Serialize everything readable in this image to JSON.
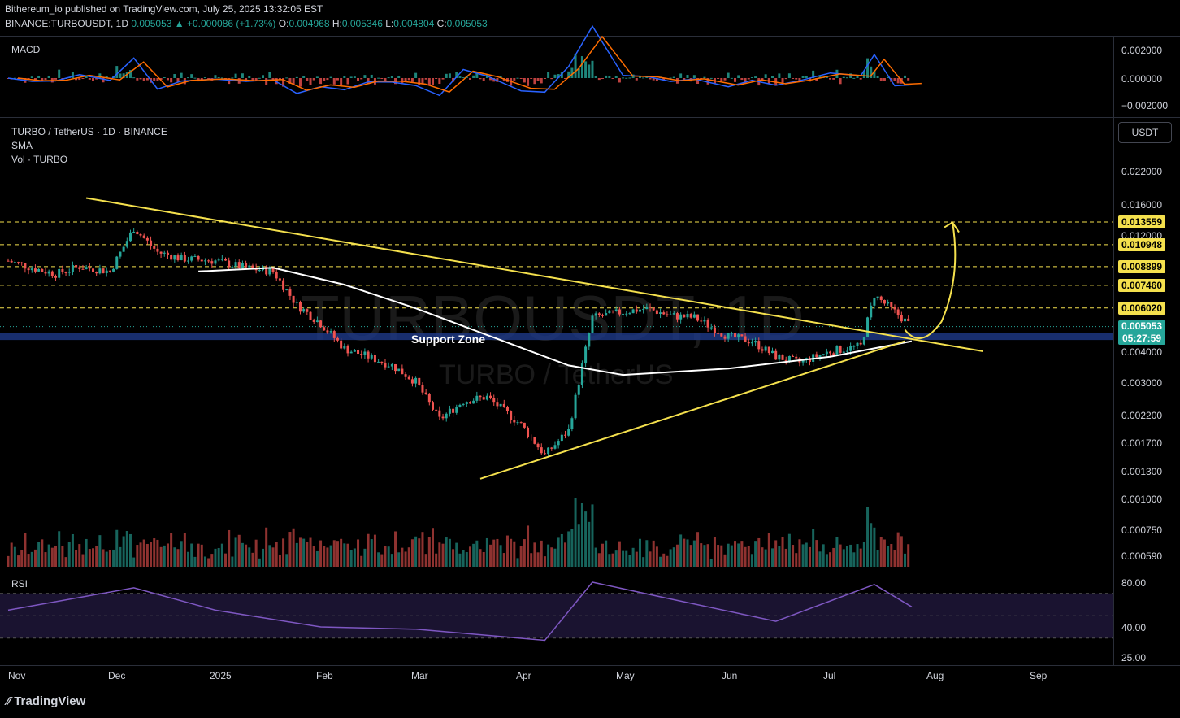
{
  "header": {
    "line1": "Bithereum_io published on TradingView.com, July 25, 2025 13:32:05 EST",
    "symbol": "BINANCE:TURBOUSDT, 1D",
    "last": "0.005053",
    "change": "▲ +0.000086 (+1.73%)",
    "o_label": "O:",
    "o": "0.004968",
    "h_label": "H:",
    "h": "0.005346",
    "l_label": "L:",
    "l": "0.004804",
    "c_label": "C:",
    "c": "0.005053"
  },
  "panes": {
    "macd_label": "MACD",
    "main_title": "TURBO / TetherUS · 1D · BINANCE",
    "sma_label": "SMA",
    "vol_label": "Vol · TURBO",
    "rsi_label": "RSI"
  },
  "watermark": {
    "big": "TURBOUSDT, 1D",
    "small": "TURBO / TetherUS"
  },
  "annotation": {
    "support_zone": "Support Zone"
  },
  "currency_button": "USDT",
  "macd_axis": [
    "0.002000",
    "0.000000",
    "−0.002000"
  ],
  "price_axis": [
    "0.022000",
    "0.016000",
    "0.012000",
    "0.004000",
    "0.003000",
    "0.002200",
    "0.001700",
    "0.001300",
    "0.001000",
    "0.000750",
    "0.000590"
  ],
  "rsi_axis": [
    "80.00",
    "40.00",
    "25.00"
  ],
  "levels": [
    "0.013559",
    "0.010948",
    "0.008899",
    "0.007460",
    "0.006020"
  ],
  "current_price": {
    "price": "0.005053",
    "countdown": "05:27:59"
  },
  "x_axis": [
    "Nov",
    "Dec",
    "2025",
    "Feb",
    "Mar",
    "Apr",
    "May",
    "Jun",
    "Jul",
    "Aug",
    "Sep"
  ],
  "footer": {
    "brand": "TradingView"
  },
  "colors": {
    "up": "#26a69a",
    "down": "#ef5350",
    "trend": "#f4e04d",
    "sma": "#ffffff",
    "zone": "#1e3a8a",
    "rsi": "#7e57c2",
    "macd": "#2962ff",
    "signal": "#ff6d00"
  },
  "chart_data": {
    "type": "candlestick",
    "title": "TURBO / TetherUS · 1D · BINANCE",
    "y_scale": "log",
    "x_range": [
      "2024-11-01",
      "2025-07-25"
    ],
    "close_series": [
      [
        "2024-11-01",
        0.0094
      ],
      [
        "2024-11-08",
        0.0088
      ],
      [
        "2024-11-15",
        0.0083
      ],
      [
        "2024-11-22",
        0.0089
      ],
      [
        "2024-12-01",
        0.0085
      ],
      [
        "2024-12-08",
        0.0128
      ],
      [
        "2024-12-15",
        0.0102
      ],
      [
        "2024-12-22",
        0.0096
      ],
      [
        "2025-01-01",
        0.0094
      ],
      [
        "2025-01-10",
        0.0088
      ],
      [
        "2025-01-18",
        0.0085
      ],
      [
        "2025-01-25",
        0.0062
      ],
      [
        "2025-02-01",
        0.0052
      ],
      [
        "2025-02-08",
        0.0041
      ],
      [
        "2025-02-15",
        0.0038
      ],
      [
        "2025-02-22",
        0.0035
      ],
      [
        "2025-03-01",
        0.003
      ],
      [
        "2025-03-08",
        0.0021
      ],
      [
        "2025-03-15",
        0.0025
      ],
      [
        "2025-03-22",
        0.0026
      ],
      [
        "2025-04-01",
        0.002
      ],
      [
        "2025-04-08",
        0.0015
      ],
      [
        "2025-04-15",
        0.0019
      ],
      [
        "2025-04-22",
        0.0055
      ],
      [
        "2025-05-01",
        0.0058
      ],
      [
        "2025-05-08",
        0.006
      ],
      [
        "2025-05-15",
        0.0056
      ],
      [
        "2025-05-22",
        0.0055
      ],
      [
        "2025-06-01",
        0.0046
      ],
      [
        "2025-06-08",
        0.0044
      ],
      [
        "2025-06-15",
        0.0038
      ],
      [
        "2025-06-22",
        0.0036
      ],
      [
        "2025-07-01",
        0.004
      ],
      [
        "2025-07-10",
        0.0042
      ],
      [
        "2025-07-14",
        0.0068
      ],
      [
        "2025-07-20",
        0.0058
      ],
      [
        "2025-07-25",
        0.005053
      ]
    ],
    "sma_series": [
      [
        "2024-12-27",
        0.0085
      ],
      [
        "2025-01-18",
        0.0088
      ],
      [
        "2025-02-08",
        0.0075
      ],
      [
        "2025-03-01",
        0.006
      ],
      [
        "2025-03-25",
        0.0045
      ],
      [
        "2025-04-15",
        0.0035
      ],
      [
        "2025-05-01",
        0.0032
      ],
      [
        "2025-06-01",
        0.0034
      ],
      [
        "2025-07-01",
        0.0038
      ],
      [
        "2025-07-25",
        0.0044
      ]
    ],
    "support_zone": [
      0.00445,
      0.00475
    ],
    "horizontal_levels": [
      0.013559,
      0.010948,
      0.008899,
      0.00746,
      0.00602
    ],
    "descending_trendline": [
      [
        "2024-11-24",
        0.017
      ],
      [
        "2025-08-15",
        0.004
      ]
    ],
    "ascending_trendline": [
      [
        "2025-03-20",
        0.0012
      ],
      [
        "2025-07-23",
        0.0044
      ]
    ],
    "projection": [
      [
        "2025-07-23",
        0.0049
      ],
      [
        "2025-08-06",
        0.0135
      ]
    ],
    "rsi_levels": [
      70,
      50,
      30
    ],
    "rsi_series": [
      [
        "2024-11-01",
        55
      ],
      [
        "2024-12-08",
        75
      ],
      [
        "2025-01-01",
        55
      ],
      [
        "2025-02-01",
        40
      ],
      [
        "2025-03-01",
        38
      ],
      [
        "2025-04-08",
        28
      ],
      [
        "2025-04-22",
        80
      ],
      [
        "2025-05-15",
        65
      ],
      [
        "2025-06-15",
        45
      ],
      [
        "2025-07-14",
        78
      ],
      [
        "2025-07-25",
        58
      ]
    ]
  }
}
